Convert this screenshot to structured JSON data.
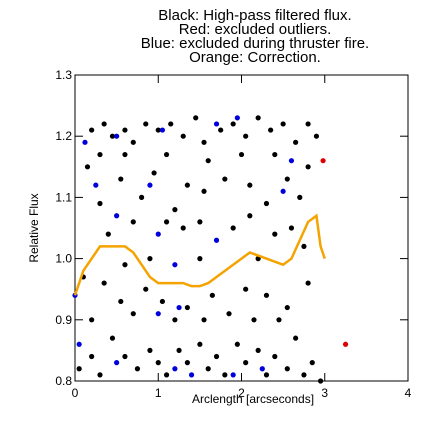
{
  "chart_data": {
    "type": "scatter",
    "title": [
      "Black: High-pass filtered flux.",
      "Red: excluded outliers.",
      "Blue: excluded during thruster fire.",
      "Orange: Correction."
    ],
    "xlabel": "Arclength [arcseconds]",
    "ylabel": "Relative Flux",
    "xlim": [
      0,
      4
    ],
    "ylim": [
      0.8,
      1.3
    ],
    "xticks": [
      0,
      1,
      2,
      3,
      4
    ],
    "yticks": [
      0.8,
      0.9,
      {
        "value": 1,
        "label": "1.0"
      },
      1.1,
      1.2,
      1.3
    ],
    "series": [
      {
        "color": "#000000",
        "mode": "markers",
        "x": [
          0.2,
          0.35,
          0.45,
          0.6,
          0.7,
          0.85,
          1.0,
          1.15,
          1.3,
          1.45,
          1.55,
          1.75,
          1.9,
          2.05,
          2.2,
          2.35,
          2.5,
          2.65,
          2.8,
          2.9,
          0.3,
          0.6,
          1.1,
          1.6,
          2.0,
          2.4,
          2.8,
          0.3,
          0.55,
          0.8,
          0.95,
          1.35,
          1.55,
          1.8,
          2.1,
          2.3,
          2.7,
          0.15,
          1.2,
          2.55,
          0.4,
          0.7,
          1.1,
          1.3,
          1.5,
          1.9,
          2.1,
          2.4,
          2.6,
          0.6,
          0.9,
          2.75,
          2.2,
          1.5,
          0.1,
          0.35,
          0.55,
          0.85,
          1.05,
          1.35,
          1.65,
          1.85,
          2.05,
          2.3,
          2.55,
          2.8,
          0.2,
          0.7,
          1.2,
          1.55,
          2.15,
          2.45,
          0.05,
          0.2,
          0.3,
          0.45,
          0.6,
          0.75,
          0.9,
          1.0,
          1.1,
          1.25,
          1.35,
          1.5,
          1.6,
          1.7,
          1.8,
          1.95,
          2.05,
          2.2,
          2.3,
          2.4,
          2.55,
          2.65,
          2.75,
          2.85,
          2.95
        ],
        "values": [
          1.21,
          1.22,
          1.2,
          1.21,
          1.19,
          1.22,
          1.21,
          1.22,
          1.2,
          1.23,
          1.19,
          1.21,
          1.22,
          1.2,
          1.23,
          1.21,
          1.22,
          1.19,
          1.22,
          1.2,
          1.17,
          1.17,
          1.17,
          1.16,
          1.17,
          1.17,
          1.15,
          1.09,
          1.13,
          1.1,
          1.14,
          1.12,
          1.11,
          1.13,
          1.12,
          1.09,
          1.1,
          1.15,
          1.08,
          1.13,
          1.04,
          1.06,
          1.06,
          1.05,
          1.06,
          1.05,
          1.07,
          1.04,
          1.05,
          0.99,
          1.0,
          1.02,
          1.0,
          1.0,
          0.97,
          0.96,
          0.93,
          0.95,
          0.93,
          0.92,
          0.94,
          0.91,
          0.95,
          0.94,
          0.92,
          0.96,
          0.9,
          0.91,
          0.9,
          0.9,
          0.9,
          0.9,
          0.82,
          0.84,
          0.81,
          0.87,
          0.84,
          0.82,
          0.85,
          0.83,
          0.81,
          0.85,
          0.83,
          0.86,
          0.82,
          0.84,
          0.81,
          0.86,
          0.83,
          0.85,
          0.81,
          0.84,
          0.82,
          0.87,
          0.81,
          0.83,
          0.8
        ]
      },
      {
        "color": "#0000dd",
        "mode": "markers",
        "x": [
          0.12,
          0.5,
          0.25,
          0.5,
          1.05,
          0.9,
          1.0,
          1.2,
          1.0,
          1.25,
          0.0,
          0.05,
          0.5,
          1.2,
          1.4,
          1.9,
          2.25,
          2.5,
          2.6,
          1.7,
          1.7,
          1.95
        ],
        "values": [
          1.19,
          1.2,
          1.12,
          1.07,
          1.21,
          1.12,
          1.04,
          0.99,
          0.91,
          0.92,
          0.94,
          0.86,
          0.83,
          0.82,
          0.81,
          0.81,
          0.82,
          1.11,
          1.16,
          1.22,
          1.03,
          1.23
        ]
      },
      {
        "color": "#dd0000",
        "mode": "markers",
        "x": [
          2.98,
          3.25
        ],
        "values": [
          1.16,
          0.86
        ]
      },
      {
        "color": "#f5a300",
        "mode": "line",
        "x": [
          0,
          0.05,
          0.1,
          0.2,
          0.3,
          0.4,
          0.5,
          0.6,
          0.7,
          0.8,
          0.9,
          1.0,
          1.1,
          1.2,
          1.3,
          1.4,
          1.5,
          1.6,
          1.7,
          1.8,
          1.9,
          2.0,
          2.1,
          2.2,
          2.3,
          2.4,
          2.5,
          2.6,
          2.7,
          2.8,
          2.9,
          2.95,
          3.0
        ],
        "values": [
          0.94,
          0.96,
          0.98,
          1.0,
          1.02,
          1.02,
          1.02,
          1.02,
          1.01,
          0.99,
          0.97,
          0.96,
          0.96,
          0.96,
          0.96,
          0.955,
          0.955,
          0.96,
          0.97,
          0.98,
          0.99,
          1.0,
          1.01,
          1.005,
          1.0,
          0.995,
          0.99,
          1.0,
          1.03,
          1.06,
          1.07,
          1.02,
          1.0
        ]
      }
    ]
  }
}
